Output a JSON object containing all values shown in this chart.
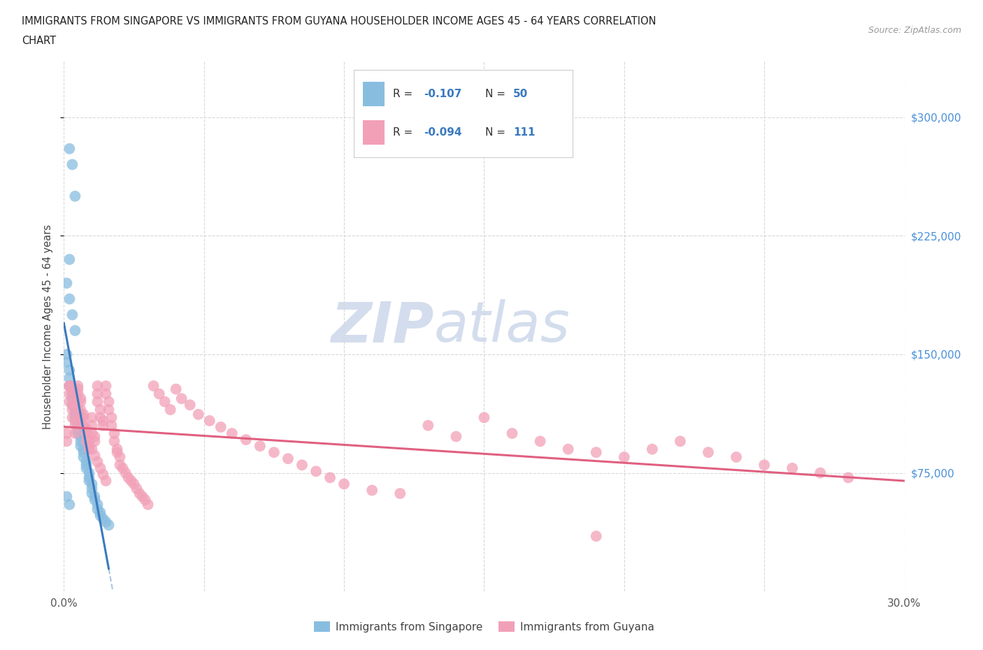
{
  "title_line1": "IMMIGRANTS FROM SINGAPORE VS IMMIGRANTS FROM GUYANA HOUSEHOLDER INCOME AGES 45 - 64 YEARS CORRELATION",
  "title_line2": "CHART",
  "source": "Source: ZipAtlas.com",
  "ylabel": "Householder Income Ages 45 - 64 years",
  "xlim": [
    0.0,
    0.3
  ],
  "ylim": [
    0,
    335000
  ],
  "yticks": [
    75000,
    150000,
    225000,
    300000
  ],
  "ytick_labels": [
    "$75,000",
    "$150,000",
    "$225,000",
    "$300,000"
  ],
  "xticks": [
    0.0,
    0.05,
    0.1,
    0.15,
    0.2,
    0.25,
    0.3
  ],
  "xtick_labels": [
    "0.0%",
    "",
    "",
    "",
    "",
    "",
    "30.0%"
  ],
  "singapore_color": "#89bde0",
  "guyana_color": "#f2a0b8",
  "singapore_line_color": "#3a7abf",
  "guyana_line_color": "#e06080",
  "background_color": "#ffffff",
  "grid_color": "#d8d8d8",
  "legend_R_color": "#3a7abf",
  "watermark_color": "#ccd8ea",
  "singapore_label": "Immigrants from Singapore",
  "guyana_label": "Immigrants from Guyana",
  "sg_R": "-0.107",
  "sg_N": "50",
  "gy_R": "-0.094",
  "gy_N": "111",
  "sg_x": [
    0.001,
    0.001,
    0.002,
    0.002,
    0.002,
    0.003,
    0.003,
    0.003,
    0.003,
    0.004,
    0.004,
    0.004,
    0.005,
    0.005,
    0.005,
    0.005,
    0.006,
    0.006,
    0.006,
    0.007,
    0.007,
    0.007,
    0.008,
    0.008,
    0.008,
    0.009,
    0.009,
    0.009,
    0.01,
    0.01,
    0.01,
    0.011,
    0.011,
    0.012,
    0.012,
    0.013,
    0.013,
    0.014,
    0.015,
    0.016,
    0.002,
    0.003,
    0.004,
    0.002,
    0.001,
    0.002,
    0.003,
    0.004,
    0.001,
    0.002
  ],
  "sg_y": [
    150000,
    145000,
    140000,
    135000,
    130000,
    128000,
    125000,
    122000,
    118000,
    115000,
    112000,
    110000,
    108000,
    105000,
    102000,
    100000,
    98000,
    95000,
    92000,
    90000,
    88000,
    85000,
    82000,
    80000,
    78000,
    75000,
    72000,
    70000,
    68000,
    65000,
    62000,
    60000,
    58000,
    55000,
    52000,
    50000,
    48000,
    46000,
    44000,
    42000,
    280000,
    270000,
    250000,
    210000,
    195000,
    185000,
    175000,
    165000,
    60000,
    55000
  ],
  "gy_x": [
    0.001,
    0.001,
    0.002,
    0.002,
    0.002,
    0.003,
    0.003,
    0.003,
    0.004,
    0.004,
    0.004,
    0.005,
    0.005,
    0.005,
    0.006,
    0.006,
    0.006,
    0.007,
    0.007,
    0.007,
    0.008,
    0.008,
    0.008,
    0.009,
    0.009,
    0.01,
    0.01,
    0.01,
    0.011,
    0.011,
    0.012,
    0.012,
    0.012,
    0.013,
    0.013,
    0.014,
    0.014,
    0.015,
    0.015,
    0.016,
    0.016,
    0.017,
    0.017,
    0.018,
    0.018,
    0.019,
    0.019,
    0.02,
    0.02,
    0.021,
    0.022,
    0.023,
    0.024,
    0.025,
    0.026,
    0.027,
    0.028,
    0.029,
    0.03,
    0.032,
    0.034,
    0.036,
    0.038,
    0.04,
    0.042,
    0.045,
    0.048,
    0.052,
    0.056,
    0.06,
    0.065,
    0.07,
    0.075,
    0.08,
    0.085,
    0.09,
    0.095,
    0.1,
    0.11,
    0.12,
    0.13,
    0.14,
    0.15,
    0.16,
    0.17,
    0.18,
    0.19,
    0.2,
    0.21,
    0.22,
    0.23,
    0.24,
    0.25,
    0.26,
    0.27,
    0.28,
    0.002,
    0.003,
    0.004,
    0.005,
    0.006,
    0.007,
    0.008,
    0.009,
    0.01,
    0.011,
    0.012,
    0.013,
    0.014,
    0.015,
    0.19
  ],
  "gy_y": [
    100000,
    95000,
    130000,
    125000,
    120000,
    118000,
    115000,
    110000,
    108000,
    105000,
    100000,
    130000,
    128000,
    125000,
    122000,
    120000,
    115000,
    112000,
    110000,
    105000,
    103000,
    100000,
    95000,
    92000,
    90000,
    110000,
    105000,
    100000,
    98000,
    95000,
    130000,
    125000,
    120000,
    115000,
    110000,
    108000,
    105000,
    130000,
    125000,
    120000,
    115000,
    110000,
    105000,
    100000,
    95000,
    90000,
    88000,
    85000,
    80000,
    78000,
    75000,
    72000,
    70000,
    68000,
    65000,
    62000,
    60000,
    58000,
    55000,
    130000,
    125000,
    120000,
    115000,
    128000,
    122000,
    118000,
    112000,
    108000,
    104000,
    100000,
    96000,
    92000,
    88000,
    84000,
    80000,
    76000,
    72000,
    68000,
    64000,
    62000,
    105000,
    98000,
    110000,
    100000,
    95000,
    90000,
    88000,
    85000,
    90000,
    95000,
    88000,
    85000,
    80000,
    78000,
    75000,
    72000,
    130000,
    125000,
    120000,
    115000,
    110000,
    105000,
    100000,
    95000,
    90000,
    86000,
    82000,
    78000,
    74000,
    70000,
    35000
  ]
}
